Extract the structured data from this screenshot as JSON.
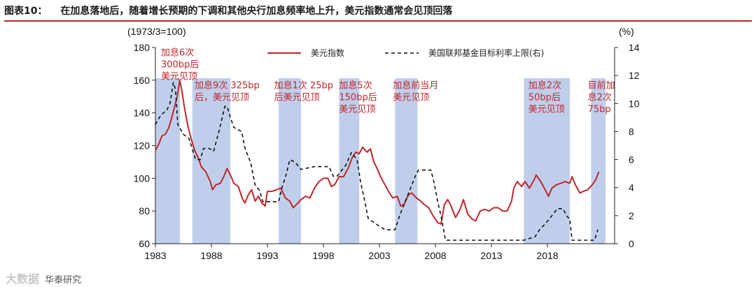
{
  "header": {
    "figure_label": "图表10：",
    "figure_title": "在加息落地后，随着增长预期的下调和其他央行加息频率地上升，美元指数通常会见顶回落"
  },
  "footer": {
    "watermark": "大数据",
    "source": "华泰研究"
  },
  "chart_data": {
    "type": "line",
    "left_axis": {
      "unit_label": "(1973/3=100)",
      "min": 60,
      "max": 180,
      "ticks": [
        60,
        80,
        100,
        120,
        140,
        160,
        180
      ]
    },
    "right_axis": {
      "unit_label": "(%)",
      "min": 0,
      "max": 14,
      "ticks": [
        0,
        2,
        4,
        6,
        8,
        10,
        12,
        14
      ]
    },
    "x_axis": {
      "min": 1983,
      "max": 2024,
      "ticks": [
        1983,
        1988,
        1993,
        1998,
        2003,
        2008,
        2013,
        2018
      ]
    },
    "colors": {
      "dxy": "#c0262a",
      "fed": "#111111",
      "shade": "#b4c7e7",
      "annotation": "#c0262a"
    },
    "series": [
      {
        "name": "美元指数",
        "axis": "left",
        "style": "solid",
        "points": [
          [
            1983.0,
            117
          ],
          [
            1983.3,
            121
          ],
          [
            1983.6,
            126
          ],
          [
            1983.9,
            127
          ],
          [
            1984.2,
            131
          ],
          [
            1984.5,
            138
          ],
          [
            1984.8,
            146
          ],
          [
            1985.0,
            152
          ],
          [
            1985.17,
            160
          ],
          [
            1985.35,
            154
          ],
          [
            1985.6,
            143
          ],
          [
            1985.9,
            132
          ],
          [
            1986.2,
            124
          ],
          [
            1986.5,
            117
          ],
          [
            1986.8,
            113
          ],
          [
            1987.1,
            107
          ],
          [
            1987.5,
            104
          ],
          [
            1987.9,
            98
          ],
          [
            1988.1,
            93
          ],
          [
            1988.4,
            96
          ],
          [
            1988.8,
            97
          ],
          [
            1989.1,
            101
          ],
          [
            1989.4,
            106
          ],
          [
            1989.7,
            102
          ],
          [
            1990.0,
            97
          ],
          [
            1990.4,
            95
          ],
          [
            1990.8,
            87
          ],
          [
            1991.0,
            85
          ],
          [
            1991.3,
            90
          ],
          [
            1991.6,
            93
          ],
          [
            1991.9,
            86
          ],
          [
            1992.2,
            89
          ],
          [
            1992.5,
            85
          ],
          [
            1992.8,
            83
          ],
          [
            1993.0,
            92
          ],
          [
            1993.4,
            92
          ],
          [
            1993.8,
            93
          ],
          [
            1994.2,
            94
          ],
          [
            1994.6,
            88
          ],
          [
            1995.0,
            86
          ],
          [
            1995.3,
            82
          ],
          [
            1995.6,
            84
          ],
          [
            1996.0,
            87
          ],
          [
            1996.4,
            89
          ],
          [
            1996.8,
            88
          ],
          [
            1997.2,
            94
          ],
          [
            1997.6,
            98
          ],
          [
            1998.0,
            100
          ],
          [
            1998.4,
            100
          ],
          [
            1998.7,
            95
          ],
          [
            1999.0,
            96
          ],
          [
            1999.4,
            101
          ],
          [
            1999.8,
            101
          ],
          [
            2000.2,
            106
          ],
          [
            2000.6,
            113
          ],
          [
            2000.9,
            116
          ],
          [
            2001.2,
            115
          ],
          [
            2001.5,
            119
          ],
          [
            2001.9,
            116
          ],
          [
            2002.2,
            118
          ],
          [
            2002.5,
            110
          ],
          [
            2002.8,
            106
          ],
          [
            2003.1,
            101
          ],
          [
            2003.5,
            96
          ],
          [
            2003.9,
            91
          ],
          [
            2004.2,
            88
          ],
          [
            2004.6,
            89
          ],
          [
            2004.9,
            83
          ],
          [
            2005.2,
            84
          ],
          [
            2005.6,
            90
          ],
          [
            2005.9,
            91
          ],
          [
            2006.3,
            88
          ],
          [
            2006.7,
            86
          ],
          [
            2007.0,
            84
          ],
          [
            2007.4,
            82
          ],
          [
            2007.8,
            77
          ],
          [
            2008.2,
            73
          ],
          [
            2008.5,
            72
          ],
          [
            2008.8,
            84
          ],
          [
            2009.1,
            87
          ],
          [
            2009.4,
            83
          ],
          [
            2009.8,
            76
          ],
          [
            2010.2,
            81
          ],
          [
            2010.5,
            87
          ],
          [
            2010.9,
            78
          ],
          [
            2011.3,
            75
          ],
          [
            2011.6,
            74
          ],
          [
            2012.0,
            80
          ],
          [
            2012.4,
            81
          ],
          [
            2012.8,
            80
          ],
          [
            2013.2,
            82
          ],
          [
            2013.6,
            82
          ],
          [
            2014.0,
            80
          ],
          [
            2014.4,
            80
          ],
          [
            2014.8,
            86
          ],
          [
            2015.0,
            94
          ],
          [
            2015.3,
            98
          ],
          [
            2015.7,
            95
          ],
          [
            2016.0,
            98
          ],
          [
            2016.4,
            94
          ],
          [
            2016.8,
            99
          ],
          [
            2017.0,
            102
          ],
          [
            2017.4,
            98
          ],
          [
            2017.8,
            93
          ],
          [
            2018.1,
            89
          ],
          [
            2018.4,
            94
          ],
          [
            2018.8,
            96
          ],
          [
            2019.2,
            97
          ],
          [
            2019.6,
            98
          ],
          [
            2020.0,
            97
          ],
          [
            2020.2,
            101
          ],
          [
            2020.5,
            96
          ],
          [
            2020.9,
            91
          ],
          [
            2021.2,
            92
          ],
          [
            2021.6,
            93
          ],
          [
            2022.0,
            96
          ],
          [
            2022.3,
            99
          ],
          [
            2022.6,
            104
          ]
        ]
      },
      {
        "name": "美国联邦基金目标利率上限(右)",
        "axis": "right",
        "style": "dashed",
        "points": [
          [
            1983.0,
            8.5
          ],
          [
            1983.5,
            9.2
          ],
          [
            1984.0,
            9.5
          ],
          [
            1984.3,
            10.0
          ],
          [
            1984.6,
            11.5
          ],
          [
            1984.8,
            11.0
          ],
          [
            1985.0,
            8.5
          ],
          [
            1985.5,
            7.8
          ],
          [
            1986.0,
            7.5
          ],
          [
            1986.6,
            6.0
          ],
          [
            1987.0,
            6.0
          ],
          [
            1987.3,
            6.8
          ],
          [
            1987.8,
            6.8
          ],
          [
            1988.2,
            6.6
          ],
          [
            1988.7,
            8.1
          ],
          [
            1989.2,
            9.8
          ],
          [
            1989.4,
            9.8
          ],
          [
            1989.7,
            9.0
          ],
          [
            1990.0,
            8.3
          ],
          [
            1990.7,
            8.0
          ],
          [
            1991.0,
            6.8
          ],
          [
            1991.5,
            5.8
          ],
          [
            1991.9,
            4.2
          ],
          [
            1992.3,
            3.8
          ],
          [
            1992.6,
            3.0
          ],
          [
            1993.0,
            3.0
          ],
          [
            1994.0,
            3.0
          ],
          [
            1994.3,
            4.0
          ],
          [
            1994.7,
            5.0
          ],
          [
            1995.0,
            6.0
          ],
          [
            1995.5,
            5.8
          ],
          [
            1996.0,
            5.3
          ],
          [
            1997.2,
            5.5
          ],
          [
            1998.5,
            5.5
          ],
          [
            1998.9,
            4.8
          ],
          [
            1999.2,
            4.8
          ],
          [
            1999.7,
            5.3
          ],
          [
            2000.0,
            5.6
          ],
          [
            2000.5,
            6.5
          ],
          [
            2001.0,
            6.0
          ],
          [
            2001.3,
            4.5
          ],
          [
            2001.7,
            3.0
          ],
          [
            2002.0,
            1.8
          ],
          [
            2002.9,
            1.3
          ],
          [
            2003.5,
            1.0
          ],
          [
            2004.4,
            1.0
          ],
          [
            2004.8,
            2.0
          ],
          [
            2005.3,
            3.0
          ],
          [
            2005.8,
            4.0
          ],
          [
            2006.3,
            5.0
          ],
          [
            2006.5,
            5.25
          ],
          [
            2007.6,
            5.25
          ],
          [
            2007.9,
            4.3
          ],
          [
            2008.2,
            3.0
          ],
          [
            2008.5,
            2.0
          ],
          [
            2008.9,
            0.25
          ],
          [
            2015.9,
            0.25
          ],
          [
            2016.9,
            0.5
          ],
          [
            2017.3,
            1.0
          ],
          [
            2017.9,
            1.5
          ],
          [
            2018.4,
            2.0
          ],
          [
            2018.9,
            2.5
          ],
          [
            2019.4,
            2.5
          ],
          [
            2019.7,
            2.0
          ],
          [
            2020.0,
            1.75
          ],
          [
            2020.2,
            0.25
          ],
          [
            2022.2,
            0.25
          ],
          [
            2022.5,
            1.0
          ]
        ]
      }
    ],
    "shaded_periods": [
      [
        1983.0,
        1985.2
      ],
      [
        1986.3,
        1989.7
      ],
      [
        1994.0,
        1996.0
      ],
      [
        1999.4,
        2001.2
      ],
      [
        2004.4,
        2006.4
      ],
      [
        2015.9,
        2020.0
      ],
      [
        2021.9,
        2023.2
      ]
    ],
    "annotations": [
      {
        "lines": [
          "加息6次",
          "300bp后",
          "美元见顶"
        ],
        "x": 1983.5,
        "y": 175
      },
      {
        "lines": [
          "加息9次 325bp",
          "后，美元见顶"
        ],
        "x": 1986.5,
        "y": 155
      },
      {
        "lines": [
          "加息1次 25bp",
          "后美元见顶"
        ],
        "x": 1993.6,
        "y": 155
      },
      {
        "lines": [
          "加息5次",
          "150bp后",
          "美元见顶"
        ],
        "x": 1999.4,
        "y": 155
      },
      {
        "lines": [
          "加息前当月",
          "美元见顶"
        ],
        "x": 2004.2,
        "y": 155
      },
      {
        "lines": [
          "加息2次",
          "50bp后",
          "美元见顶"
        ],
        "x": 2016.3,
        "y": 155
      },
      {
        "lines": [
          "目前加",
          "息2次",
          "75bp"
        ],
        "x": 2021.6,
        "y": 155
      }
    ],
    "legend_position": "top-center"
  }
}
